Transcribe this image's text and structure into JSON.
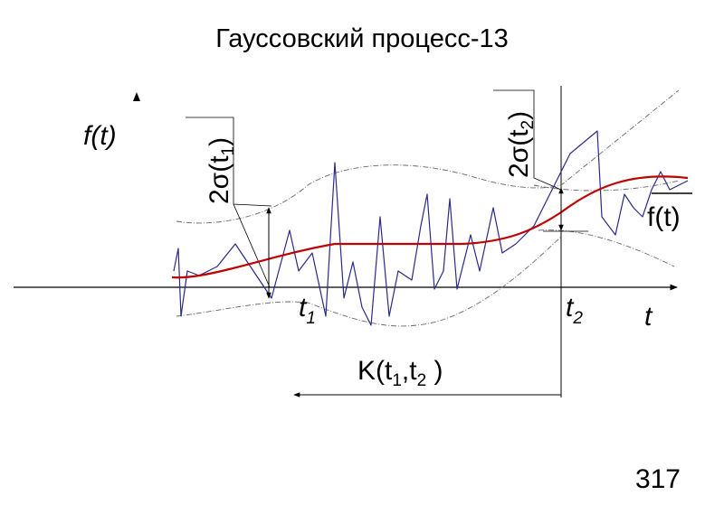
{
  "title": "Гауссовский процесс-13",
  "labels": {
    "y_axis": "f(t)",
    "sigma1": {
      "text": "2σ(t",
      "sub": "1",
      "close": ")"
    },
    "sigma2": {
      "text": "2σ(t",
      "sub": "2",
      "close": ")"
    },
    "mean": "f(t)",
    "t1": {
      "text": "t",
      "sub": "1"
    },
    "t2": {
      "text": "t",
      "sub": "2"
    },
    "x_axis": "t",
    "correlation": {
      "open": "K(t",
      "sub1": "1",
      "mid": ",t",
      "sub2": "2",
      "close": " )"
    }
  },
  "page_number": "317"
}
